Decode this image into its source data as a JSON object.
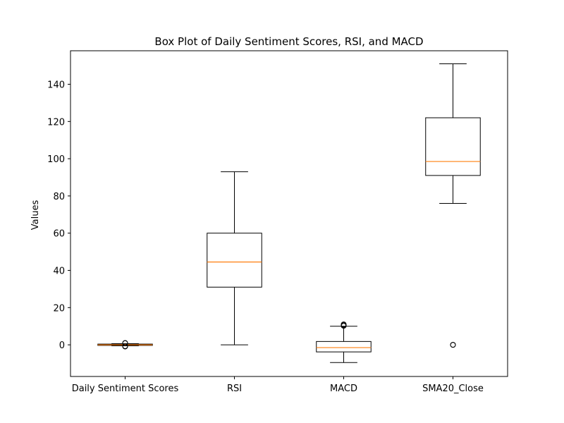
{
  "chart_data": {
    "type": "box",
    "title": "Box Plot of Daily Sentiment Scores, RSI, and MACD",
    "xlabel": "",
    "ylabel": "Values",
    "ylim": [
      -17,
      158
    ],
    "yticks": [
      0,
      20,
      40,
      60,
      80,
      100,
      120,
      140
    ],
    "grid": false,
    "colors": {
      "box": "#000000",
      "median": "#ff7f0e",
      "background": "#ffffff"
    },
    "boxes": [
      {
        "label": "Daily Sentiment Scores",
        "whisker_low": -0.5,
        "q1": -0.3,
        "median": 0.0,
        "q3": 0.4,
        "whisker_high": 0.6,
        "outliers": [
          -0.9,
          -0.7,
          0.9,
          1.0
        ]
      },
      {
        "label": "RSI",
        "whisker_low": 0.0,
        "q1": 31.0,
        "median": 44.5,
        "q3": 60.0,
        "whisker_high": 93.0,
        "outliers": []
      },
      {
        "label": "MACD",
        "whisker_low": -9.5,
        "q1": -3.8,
        "median": -1.5,
        "q3": 1.8,
        "whisker_high": 10.0,
        "outliers": [
          10.2,
          10.6,
          11.0
        ]
      },
      {
        "label": "SMA20_Close",
        "whisker_low": 76.0,
        "q1": 91.0,
        "median": 98.5,
        "q3": 122.0,
        "whisker_high": 151.0,
        "outliers": [
          0.0,
          0.0
        ]
      }
    ]
  }
}
